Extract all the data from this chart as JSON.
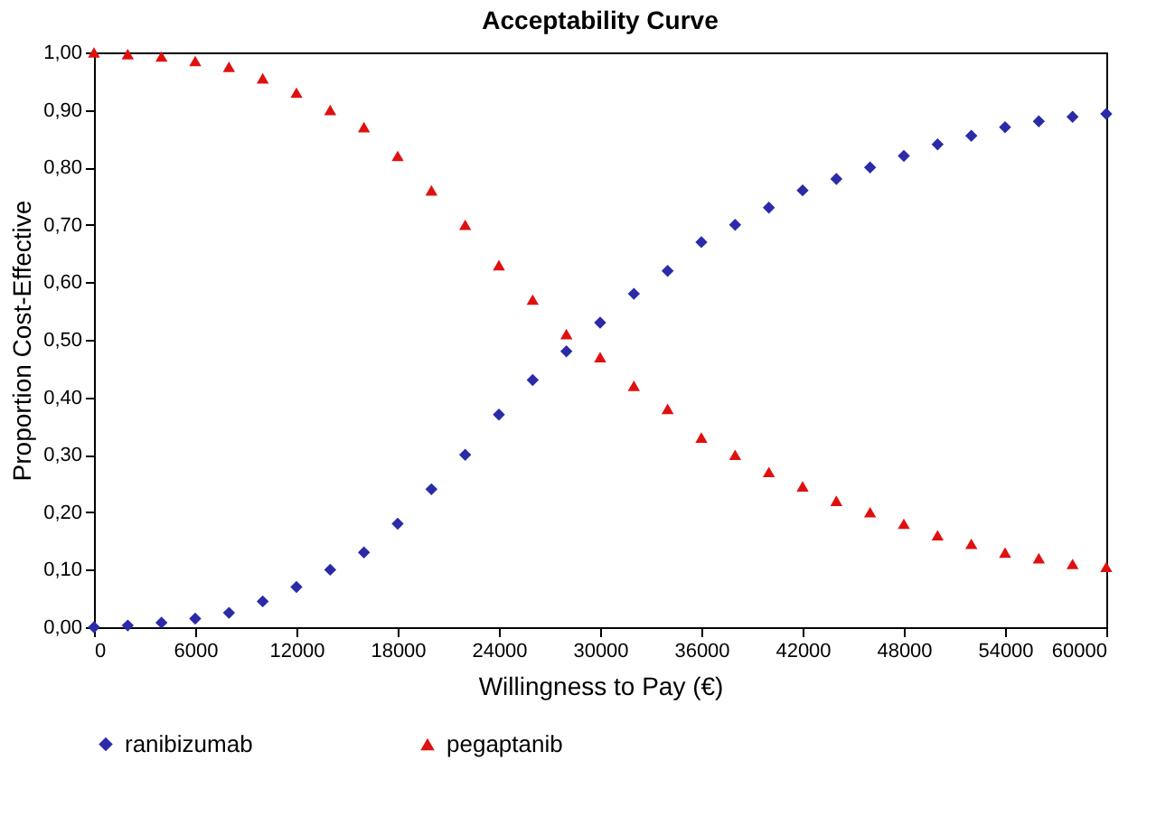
{
  "chart_data": {
    "type": "scatter",
    "title": "Acceptability Curve",
    "xlabel": "Willingness to Pay (€)",
    "ylabel": "Proportion Cost-Effective",
    "x": [
      0,
      2000,
      4000,
      6000,
      8000,
      10000,
      12000,
      14000,
      16000,
      18000,
      20000,
      22000,
      24000,
      26000,
      28000,
      30000,
      32000,
      34000,
      36000,
      38000,
      40000,
      42000,
      44000,
      46000,
      48000,
      50000,
      52000,
      54000,
      56000,
      58000,
      60000
    ],
    "series": [
      {
        "name": "ranibizumab",
        "color": "#2b2ba8",
        "marker": "diamond",
        "values": [
          0,
          0.003,
          0.008,
          0.015,
          0.025,
          0.045,
          0.07,
          0.1,
          0.13,
          0.18,
          0.24,
          0.3,
          0.37,
          0.43,
          0.48,
          0.53,
          0.58,
          0.62,
          0.67,
          0.7,
          0.73,
          0.76,
          0.78,
          0.8,
          0.82,
          0.84,
          0.855,
          0.87,
          0.88,
          0.888,
          0.893
        ]
      },
      {
        "name": "pegaptanib",
        "color": "#e01010",
        "marker": "triangle",
        "values": [
          1.0,
          0.997,
          0.993,
          0.985,
          0.975,
          0.955,
          0.93,
          0.9,
          0.87,
          0.82,
          0.76,
          0.7,
          0.63,
          0.57,
          0.51,
          0.47,
          0.42,
          0.38,
          0.33,
          0.3,
          0.27,
          0.245,
          0.22,
          0.2,
          0.18,
          0.16,
          0.145,
          0.13,
          0.12,
          0.11,
          0.105
        ]
      }
    ],
    "xlim": [
      0,
      60000
    ],
    "xticks": [
      0,
      6000,
      12000,
      18000,
      24000,
      30000,
      36000,
      42000,
      48000,
      54000,
      60000
    ],
    "ylim": [
      0,
      1
    ],
    "yticks": [
      {
        "value": 0,
        "label": "0,00"
      },
      {
        "value": 0.1,
        "label": "0,10"
      },
      {
        "value": 0.2,
        "label": "0,20"
      },
      {
        "value": 0.3,
        "label": "0,30"
      },
      {
        "value": 0.4,
        "label": "0,40"
      },
      {
        "value": 0.5,
        "label": "0,50"
      },
      {
        "value": 0.6,
        "label": "0,60"
      },
      {
        "value": 0.7,
        "label": "0,70"
      },
      {
        "value": 0.8,
        "label": "0,80"
      },
      {
        "value": 0.9,
        "label": "0,90"
      },
      {
        "value": 1,
        "label": "1,00"
      }
    ],
    "grid": false,
    "legend": "bottom"
  }
}
